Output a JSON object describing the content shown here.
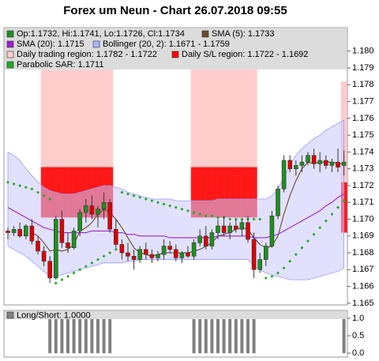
{
  "title": "Forex um Neun - Chart 26.07.2018 09:55",
  "chart_data": [
    {
      "type": "candlestick",
      "ylim": [
        1.1649,
        1.1814
      ],
      "yticks": [
        {
          "value": 1.165,
          "label": "1.165"
        },
        {
          "value": 1.166,
          "label": "1.166"
        },
        {
          "value": 1.167,
          "label": "1.167"
        },
        {
          "value": 1.168,
          "label": "1.168"
        },
        {
          "value": 1.169,
          "label": "1.169"
        },
        {
          "value": 1.17,
          "label": "1.170"
        },
        {
          "value": 1.171,
          "label": "1.171"
        },
        {
          "value": 1.172,
          "label": "1.172"
        },
        {
          "value": 1.173,
          "label": "1.173"
        },
        {
          "value": 1.174,
          "label": "1.174"
        },
        {
          "value": 1.175,
          "label": "1.175"
        },
        {
          "value": 1.176,
          "label": "1.176"
        },
        {
          "value": 1.177,
          "label": "1.177"
        },
        {
          "value": 1.178,
          "label": "1.178"
        },
        {
          "value": 1.179,
          "label": "1.179"
        },
        {
          "value": 1.18,
          "label": "1.180"
        }
      ],
      "candles": {
        "name": "Op:1.1732, Hi:1.1741, Lo:1.1726, Cl:1.1734",
        "color": "#1f8f1f",
        "down_color": "#e00000",
        "open": [
          1.1693,
          1.1692,
          1.1694,
          1.169,
          1.1696,
          1.1687,
          1.1681,
          1.1675,
          1.1665,
          1.17,
          1.1686,
          1.1683,
          1.1693,
          1.1704,
          1.1708,
          1.1703,
          1.1706,
          1.171,
          1.1694,
          1.1685,
          1.168,
          1.1678,
          1.1676,
          1.1682,
          1.1679,
          1.1677,
          1.1679,
          1.1684,
          1.1682,
          1.1677,
          1.168,
          1.1678,
          1.1686,
          1.169,
          1.1684,
          1.1692,
          1.1696,
          1.1692,
          1.1696,
          1.1694,
          1.1698,
          1.1688,
          1.167,
          1.1676,
          1.1684,
          1.1702,
          1.1718,
          1.1735,
          1.173,
          1.1732,
          1.1734,
          1.1738,
          1.1733,
          1.1735,
          1.1732,
          1.1734,
          1.1732
        ],
        "high": [
          1.1695,
          1.1696,
          1.1698,
          1.1697,
          1.17,
          1.169,
          1.1684,
          1.1678,
          1.1702,
          1.1705,
          1.1692,
          1.1695,
          1.1706,
          1.1712,
          1.1714,
          1.1708,
          1.1716,
          1.1712,
          1.17,
          1.1688,
          1.1686,
          1.1682,
          1.1684,
          1.1686,
          1.1682,
          1.1681,
          1.1688,
          1.1687,
          1.1685,
          1.1681,
          1.1684,
          1.1688,
          1.1694,
          1.1696,
          1.1694,
          1.17,
          1.1702,
          1.1698,
          1.17,
          1.17,
          1.1702,
          1.1692,
          1.168,
          1.1686,
          1.1705,
          1.172,
          1.1738,
          1.1738,
          1.1735,
          1.1738,
          1.174,
          1.1742,
          1.174,
          1.1738,
          1.1736,
          1.1742,
          1.1741
        ],
        "low": [
          1.1688,
          1.169,
          1.1689,
          1.1688,
          1.1685,
          1.1679,
          1.1672,
          1.1662,
          1.1664,
          1.1683,
          1.168,
          1.1682,
          1.169,
          1.1698,
          1.17,
          1.1695,
          1.17,
          1.1692,
          1.1683,
          1.1676,
          1.1675,
          1.167,
          1.1674,
          1.1676,
          1.1674,
          1.1675,
          1.1676,
          1.168,
          1.1675,
          1.1674,
          1.1677,
          1.1676,
          1.1684,
          1.1682,
          1.1682,
          1.1688,
          1.169,
          1.1688,
          1.1692,
          1.169,
          1.1686,
          1.1665,
          1.1668,
          1.1672,
          1.1683,
          1.17,
          1.1716,
          1.1728,
          1.1726,
          1.1728,
          1.1732,
          1.173,
          1.1728,
          1.173,
          1.1728,
          1.1728,
          1.1726
        ],
        "close": [
          1.1692,
          1.1694,
          1.169,
          1.1696,
          1.1687,
          1.1681,
          1.1675,
          1.1665,
          1.17,
          1.1686,
          1.1683,
          1.1693,
          1.1704,
          1.1708,
          1.1703,
          1.1706,
          1.171,
          1.1694,
          1.1685,
          1.168,
          1.1678,
          1.1676,
          1.1682,
          1.1679,
          1.1677,
          1.1679,
          1.1684,
          1.1682,
          1.1677,
          1.168,
          1.1678,
          1.1686,
          1.169,
          1.1684,
          1.1692,
          1.1696,
          1.1692,
          1.1696,
          1.1694,
          1.1698,
          1.1688,
          1.167,
          1.1676,
          1.1684,
          1.1702,
          1.1718,
          1.1735,
          1.173,
          1.1732,
          1.1734,
          1.1738,
          1.1733,
          1.1735,
          1.1732,
          1.1734,
          1.1731,
          1.1734
        ]
      },
      "series": [
        {
          "name": "SMA (5): 1.1733",
          "color": "#6b4a2a",
          "values": [
            null,
            null,
            null,
            null,
            1.1692,
            1.169,
            1.1686,
            1.1681,
            1.1682,
            1.1681,
            1.1682,
            1.1685,
            1.1693,
            1.1695,
            1.1698,
            1.1703,
            1.1706,
            1.1704,
            1.17,
            1.1695,
            1.1689,
            1.1683,
            1.168,
            1.1679,
            1.1678,
            1.1679,
            1.168,
            1.168,
            1.168,
            1.168,
            1.168,
            1.1681,
            1.1682,
            1.1684,
            1.1686,
            1.169,
            1.1691,
            1.1692,
            1.1694,
            1.1695,
            1.1694,
            1.1689,
            1.1685,
            1.1683,
            1.1684,
            1.169,
            1.1703,
            1.1714,
            1.1723,
            1.173,
            1.1734,
            1.1733,
            1.1734,
            1.1734,
            1.1734,
            1.1733,
            1.1733
          ]
        },
        {
          "name": "SMA (20): 1.1715",
          "color": "#a020d0",
          "values": [
            1.1707,
            1.1705,
            1.1703,
            1.1701,
            1.1699,
            1.1697,
            1.1695,
            1.1694,
            1.1693,
            1.1692,
            1.1692,
            1.1692,
            1.1692,
            1.1692,
            1.1693,
            1.1693,
            1.1693,
            1.1693,
            1.1692,
            1.1692,
            1.1691,
            1.1691,
            1.169,
            1.169,
            1.169,
            1.169,
            1.169,
            1.1689,
            1.1689,
            1.1689,
            1.1689,
            1.1689,
            1.1689,
            1.1689,
            1.1689,
            1.169,
            1.169,
            1.169,
            1.169,
            1.169,
            1.169,
            1.1689,
            1.1689,
            1.1689,
            1.169,
            1.1691,
            1.1693,
            1.1695,
            1.1697,
            1.1699,
            1.1701,
            1.1703,
            1.1705,
            1.1708,
            1.171,
            1.1713,
            1.1715
          ]
        },
        {
          "name": "Bollinger (20, 2): 1.1671 - 1.1759",
          "color": "#9a9aff",
          "upper": [
            1.174,
            1.1738,
            1.1735,
            1.173,
            1.1726,
            1.1722,
            1.1719,
            1.1717,
            1.1716,
            1.1715,
            1.1715,
            1.1715,
            1.1716,
            1.1717,
            1.1718,
            1.1719,
            1.172,
            1.172,
            1.1719,
            1.1718,
            1.1716,
            1.1715,
            1.1714,
            1.1713,
            1.1712,
            1.1712,
            1.1712,
            1.1712,
            1.1711,
            1.1711,
            1.1711,
            1.1711,
            1.1711,
            1.1711,
            1.1711,
            1.1712,
            1.1712,
            1.1712,
            1.1712,
            1.1712,
            1.1712,
            1.1712,
            1.1712,
            1.1712,
            1.1714,
            1.1718,
            1.1725,
            1.1732,
            1.1738,
            1.1742,
            1.1745,
            1.1748,
            1.175,
            1.1753,
            1.1755,
            1.1757,
            1.1759
          ],
          "lower": [
            1.1684,
            1.1682,
            1.168,
            1.1678,
            1.1675,
            1.1672,
            1.1669,
            1.1666,
            1.1666,
            1.1667,
            1.1668,
            1.1669,
            1.167,
            1.1671,
            1.1672,
            1.1673,
            1.1674,
            1.1674,
            1.1674,
            1.1674,
            1.1675,
            1.1675,
            1.1676,
            1.1676,
            1.1676,
            1.1676,
            1.1676,
            1.1676,
            1.1676,
            1.1676,
            1.1676,
            1.1676,
            1.1676,
            1.1676,
            1.1676,
            1.1676,
            1.1676,
            1.1676,
            1.1676,
            1.1676,
            1.1676,
            1.1672,
            1.167,
            1.1668,
            1.1667,
            1.1666,
            1.1665,
            1.1664,
            1.1664,
            1.1664,
            1.1664,
            1.1665,
            1.1666,
            1.1667,
            1.1668,
            1.1669,
            1.1671
          ]
        },
        {
          "name": "Parabolic SAR: 1.1711",
          "color": "#22aa22",
          "values": [
            1.1722,
            1.1721,
            1.172,
            1.1719,
            1.1718,
            1.1716,
            1.1714,
            1.1712,
            1.1662,
            1.1664,
            1.1666,
            1.1668,
            1.167,
            1.1672,
            1.1674,
            1.1676,
            1.1678,
            1.168,
            1.1682,
            1.1716,
            1.1715,
            1.1714,
            1.1713,
            1.1712,
            1.1711,
            1.171,
            1.1709,
            1.1708,
            1.1707,
            1.1706,
            1.1705,
            1.1704,
            1.1703,
            1.1702,
            1.1702,
            1.1701,
            1.1701,
            1.17,
            1.17,
            1.17,
            1.17,
            1.17,
            1.17,
            1.1665,
            1.1666,
            1.1668,
            1.1671,
            1.1675,
            1.1679,
            1.1683,
            1.1687,
            1.1691,
            1.1695,
            1.1699,
            1.1703,
            1.1707,
            1.1711
          ]
        }
      ],
      "regions": [
        {
          "name": "Daily trading region: 1.1782 - 1.1722",
          "color": "#ffcccc",
          "high": [
            null,
            null,
            null,
            null,
            null,
            null,
            1.1789,
            1.1789,
            1.1789,
            1.1789,
            1.1789,
            1.1789,
            1.1789,
            1.1789,
            1.1789,
            1.1789,
            1.1789,
            1.1789,
            null,
            null,
            null,
            null,
            null,
            null,
            null,
            null,
            null,
            null,
            null,
            null,
            null,
            1.1789,
            1.1789,
            1.1789,
            1.1789,
            1.1789,
            1.1789,
            1.1789,
            1.1789,
            1.1789,
            1.1789,
            1.1789,
            null,
            null,
            null,
            null,
            null,
            null,
            null,
            null,
            null,
            null,
            null,
            null,
            null,
            null,
            1.1782
          ],
          "low": [
            null,
            null,
            null,
            null,
            null,
            null,
            1.1731,
            1.1731,
            1.1731,
            1.1731,
            1.1731,
            1.1731,
            1.1731,
            1.1731,
            1.1731,
            1.1731,
            1.1731,
            1.1731,
            null,
            null,
            null,
            null,
            null,
            null,
            null,
            null,
            null,
            null,
            null,
            null,
            null,
            1.1731,
            1.1731,
            1.1731,
            1.1731,
            1.1731,
            1.1731,
            1.1731,
            1.1731,
            1.1731,
            1.1731,
            1.1731,
            null,
            null,
            null,
            null,
            null,
            null,
            null,
            null,
            null,
            null,
            null,
            null,
            null,
            null,
            1.1722
          ]
        },
        {
          "name": "Daily S/L region: 1.1722 - 1.1692",
          "color": "#ff0000",
          "high": [
            null,
            null,
            null,
            null,
            null,
            null,
            1.1731,
            1.1731,
            1.1731,
            1.1731,
            1.1731,
            1.1731,
            1.1731,
            1.1731,
            1.1731,
            1.1731,
            1.1731,
            1.1731,
            null,
            null,
            null,
            null,
            null,
            null,
            null,
            null,
            null,
            null,
            null,
            null,
            null,
            1.1731,
            1.1731,
            1.1731,
            1.1731,
            1.1731,
            1.1731,
            1.1731,
            1.1731,
            1.1731,
            1.1731,
            1.1731,
            null,
            null,
            null,
            null,
            null,
            null,
            null,
            null,
            null,
            null,
            null,
            null,
            null,
            null,
            1.1722
          ],
          "low": [
            null,
            null,
            null,
            null,
            null,
            null,
            1.1701,
            1.1701,
            1.1701,
            1.1701,
            1.1701,
            1.1701,
            1.1701,
            1.1701,
            1.1701,
            1.1701,
            1.1701,
            1.1701,
            null,
            null,
            null,
            null,
            null,
            null,
            null,
            null,
            null,
            null,
            null,
            null,
            null,
            1.1701,
            1.1701,
            1.1701,
            1.1701,
            1.1701,
            1.1701,
            1.1701,
            1.1701,
            1.1701,
            1.1701,
            1.1701,
            null,
            null,
            null,
            null,
            null,
            null,
            null,
            null,
            null,
            null,
            null,
            null,
            null,
            null,
            1.1692
          ]
        }
      ]
    },
    {
      "type": "bar",
      "title": "Long/Short: 1.0000",
      "color": "#808080",
      "ylim": [
        -0.11,
        1.18
      ],
      "yticks": [
        {
          "value": 1,
          "label": "1.0"
        },
        {
          "value": 0.5,
          "label": "0.5"
        },
        {
          "value": 0,
          "label": "0.0"
        }
      ],
      "values": [
        0,
        0,
        0,
        0,
        0,
        0,
        0,
        1,
        1,
        1,
        1,
        1,
        1,
        1,
        1,
        1,
        1,
        1,
        0,
        0,
        0,
        0,
        0,
        0,
        0,
        0,
        0,
        0,
        0,
        0,
        0,
        1,
        1,
        1,
        1,
        1,
        1,
        1,
        1,
        1,
        1,
        1,
        0,
        0,
        0,
        0,
        0,
        0,
        0,
        0,
        0,
        0,
        0,
        0,
        0,
        0,
        1
      ]
    }
  ]
}
